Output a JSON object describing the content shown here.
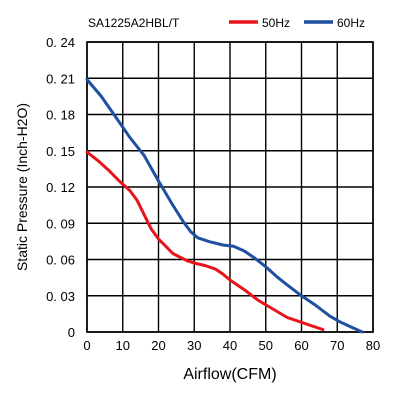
{
  "chart_data": {
    "type": "line",
    "title": "SA1225A2HBL/T",
    "xlabel": "Airflow(CFM)",
    "ylabel": "Static Pressure (Inch-H2O)",
    "xlim": [
      0,
      80
    ],
    "ylim": [
      0,
      0.24
    ],
    "x_ticks": [
      0,
      10,
      20,
      30,
      40,
      50,
      60,
      70,
      80
    ],
    "y_ticks": [
      0,
      0.03,
      0.06,
      0.09,
      0.12,
      0.15,
      0.18,
      0.21,
      0.24
    ],
    "x_tick_labels": [
      "0",
      "10",
      "20",
      "30",
      "40",
      "50",
      "60",
      "70",
      "80"
    ],
    "y_tick_labels": [
      "0",
      "0. 03",
      "0. 06",
      "0. 09",
      "0. 12",
      "0. 15",
      "0. 18",
      "0. 21",
      "0. 24"
    ],
    "grid": true,
    "legend_position": "top-right",
    "series": [
      {
        "name": "50Hz",
        "color": "#e8141c",
        "points": [
          [
            0,
            0.149
          ],
          [
            3,
            0.142
          ],
          [
            6,
            0.134
          ],
          [
            9,
            0.125
          ],
          [
            12,
            0.117
          ],
          [
            14,
            0.109
          ],
          [
            16,
            0.097
          ],
          [
            18,
            0.085
          ],
          [
            20,
            0.077
          ],
          [
            22,
            0.071
          ],
          [
            24,
            0.065
          ],
          [
            26,
            0.062
          ],
          [
            28,
            0.059
          ],
          [
            30,
            0.057
          ],
          [
            33,
            0.055
          ],
          [
            36,
            0.052
          ],
          [
            38,
            0.048
          ],
          [
            40,
            0.043
          ],
          [
            44,
            0.035
          ],
          [
            48,
            0.026
          ],
          [
            52,
            0.019
          ],
          [
            56,
            0.012
          ],
          [
            60,
            0.008
          ],
          [
            63,
            0.005
          ],
          [
            66,
            0.002
          ]
        ]
      },
      {
        "name": "60Hz",
        "color": "#1e4fa0",
        "points": [
          [
            0,
            0.209
          ],
          [
            4,
            0.195
          ],
          [
            8,
            0.178
          ],
          [
            12,
            0.161
          ],
          [
            16,
            0.146
          ],
          [
            20,
            0.125
          ],
          [
            24,
            0.105
          ],
          [
            27,
            0.091
          ],
          [
            29,
            0.083
          ],
          [
            31,
            0.078
          ],
          [
            34,
            0.075
          ],
          [
            38,
            0.072
          ],
          [
            41,
            0.071
          ],
          [
            44,
            0.067
          ],
          [
            47,
            0.061
          ],
          [
            50,
            0.054
          ],
          [
            53,
            0.046
          ],
          [
            56,
            0.039
          ],
          [
            60,
            0.03
          ],
          [
            64,
            0.022
          ],
          [
            68,
            0.013
          ],
          [
            71,
            0.008
          ],
          [
            74,
            0.004
          ],
          [
            77,
            0.0
          ]
        ]
      }
    ]
  }
}
